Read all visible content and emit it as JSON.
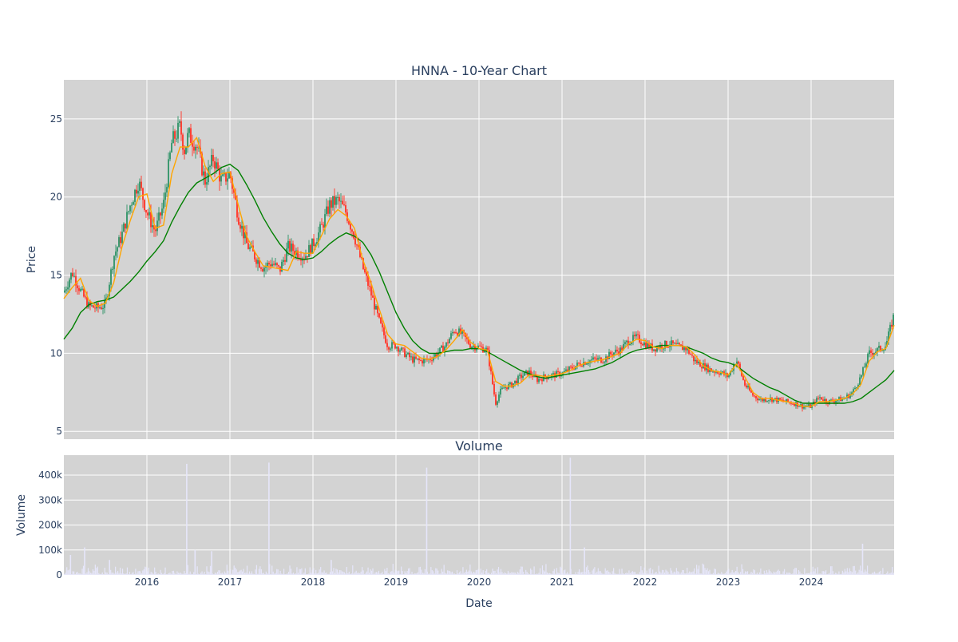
{
  "chart_data": [
    {
      "type": "line",
      "title": "HNNA - 10-Year Chart",
      "xlabel": "",
      "ylabel": "Price",
      "ylim": [
        4.5,
        27.5
      ],
      "y_ticks": [
        5,
        10,
        15,
        20,
        25
      ],
      "x_ticks": [
        "2016",
        "2017",
        "2018",
        "2019",
        "2020",
        "2021",
        "2022",
        "2023",
        "2024"
      ],
      "xlim": [
        2015.0,
        2025.0
      ],
      "grid": true,
      "legend": "none",
      "colors": {
        "up": "#3d9970",
        "down": "#ff4136",
        "ma_short": "#ffa500",
        "ma_long": "#008000",
        "plot_bg": "#d3d3d3"
      },
      "series": [
        {
          "x": [
            2015.0,
            2015.1,
            2015.2,
            2015.3,
            2015.4,
            2015.5,
            2015.6,
            2015.7,
            2015.8,
            2015.9,
            2016.0,
            2016.1,
            2016.2,
            2016.3,
            2016.4,
            2016.45,
            2016.5,
            2016.6,
            2016.7,
            2016.8,
            2016.9,
            2017.0,
            2017.1,
            2017.2,
            2017.3,
            2017.4,
            2017.5,
            2017.6,
            2017.7,
            2017.8,
            2017.9,
            2018.0,
            2018.1,
            2018.2,
            2018.3,
            2018.4,
            2018.5,
            2018.6,
            2018.7,
            2018.8,
            2018.9,
            2019.0,
            2019.1,
            2019.2,
            2019.3,
            2019.4,
            2019.5,
            2019.6,
            2019.7,
            2019.8,
            2019.9,
            2020.0,
            2020.1,
            2020.2,
            2020.25,
            2020.3,
            2020.4,
            2020.5,
            2020.6,
            2020.7,
            2020.8,
            2020.9,
            2021.0,
            2021.1,
            2021.2,
            2021.3,
            2021.4,
            2021.5,
            2021.6,
            2021.7,
            2021.8,
            2021.9,
            2022.0,
            2022.1,
            2022.2,
            2022.3,
            2022.4,
            2022.5,
            2022.6,
            2022.7,
            2022.8,
            2022.9,
            2023.0,
            2023.1,
            2023.2,
            2023.3,
            2023.4,
            2023.5,
            2023.6,
            2023.7,
            2023.8,
            2023.9,
            2024.0,
            2024.1,
            2024.2,
            2024.3,
            2024.4,
            2024.5,
            2024.6,
            2024.7,
            2024.8,
            2024.9,
            2025.0
          ],
          "values": [
            13.9,
            15.2,
            14.0,
            13.0,
            12.9,
            13.1,
            16.2,
            17.6,
            19.5,
            21.0,
            19.0,
            17.8,
            19.5,
            23.5,
            24.5,
            23.0,
            24.0,
            23.3,
            21.0,
            22.5,
            21.0,
            21.5,
            18.8,
            17.0,
            16.2,
            15.5,
            15.8,
            15.3,
            16.8,
            16.5,
            16.2,
            17.0,
            18.0,
            19.5,
            19.8,
            19.0,
            17.5,
            15.5,
            13.8,
            12.0,
            10.5,
            10.5,
            10.0,
            9.6,
            9.5,
            9.6,
            10.0,
            10.5,
            11.5,
            11.2,
            10.5,
            10.4,
            10.2,
            6.8,
            7.5,
            7.8,
            8.0,
            8.5,
            8.8,
            8.3,
            8.5,
            8.6,
            8.7,
            9.0,
            9.3,
            9.5,
            9.6,
            9.6,
            10.0,
            10.2,
            10.8,
            11.0,
            10.6,
            10.3,
            10.5,
            10.6,
            10.4,
            10.3,
            9.5,
            9.2,
            8.9,
            8.8,
            8.5,
            9.6,
            8.0,
            7.3,
            7.0,
            7.1,
            7.0,
            6.9,
            6.8,
            6.6,
            6.6,
            7.2,
            6.9,
            7.0,
            7.1,
            7.5,
            8.5,
            10.0,
            10.2,
            10.5,
            12.5
          ]
        },
        {
          "name": "",
          "x": [
            2015.0,
            2015.1,
            2015.2,
            2015.3,
            2015.4,
            2015.5,
            2015.6,
            2015.7,
            2015.8,
            2015.9,
            2016.0,
            2016.1,
            2016.2,
            2016.3,
            2016.4,
            2016.5,
            2016.6,
            2016.7,
            2016.8,
            2016.9,
            2017.0,
            2017.1,
            2017.2,
            2017.3,
            2017.4,
            2017.5,
            2017.6,
            2017.7,
            2017.8,
            2017.9,
            2018.0,
            2018.1,
            2018.2,
            2018.3,
            2018.4,
            2018.5,
            2018.6,
            2018.7,
            2018.8,
            2018.9,
            2019.0,
            2019.1,
            2019.2,
            2019.3,
            2019.4,
            2019.5,
            2019.6,
            2019.7,
            2019.8,
            2019.9,
            2020.0,
            2020.1,
            2020.2,
            2020.3,
            2020.4,
            2020.5,
            2020.6,
            2020.7,
            2020.8,
            2020.9,
            2021.0,
            2021.1,
            2021.2,
            2021.3,
            2021.4,
            2021.5,
            2021.6,
            2021.7,
            2021.8,
            2021.9,
            2022.0,
            2022.1,
            2022.2,
            2022.3,
            2022.4,
            2022.5,
            2022.6,
            2022.7,
            2022.8,
            2022.9,
            2023.0,
            2023.1,
            2023.2,
            2023.3,
            2023.4,
            2023.5,
            2023.6,
            2023.7,
            2023.8,
            2023.9,
            2024.0,
            2024.1,
            2024.2,
            2024.3,
            2024.4,
            2024.5,
            2024.6,
            2024.7,
            2024.8,
            2024.9,
            2025.0
          ],
          "values": [
            13.5,
            14.2,
            14.8,
            13.4,
            13.0,
            13.2,
            14.5,
            16.8,
            18.5,
            20.0,
            20.2,
            18.0,
            18.2,
            21.5,
            23.2,
            23.2,
            23.8,
            22.0,
            21.0,
            21.5,
            21.6,
            19.5,
            17.5,
            16.5,
            15.6,
            15.5,
            15.4,
            15.3,
            16.5,
            16.4,
            16.4,
            17.5,
            18.6,
            19.2,
            18.8,
            18.0,
            16.0,
            14.5,
            12.8,
            11.2,
            10.6,
            10.5,
            10.1,
            9.7,
            9.6,
            9.8,
            10.2,
            10.8,
            11.5,
            10.7,
            10.3,
            10.2,
            8.2,
            7.9,
            7.9,
            8.1,
            8.6,
            8.6,
            8.5,
            8.6,
            8.7,
            8.9,
            9.2,
            9.4,
            9.5,
            9.6,
            9.8,
            10.0,
            10.6,
            10.9,
            10.8,
            10.4,
            10.3,
            10.5,
            10.5,
            10.4,
            9.9,
            9.2,
            8.9,
            8.8,
            8.6,
            9.3,
            8.5,
            7.5,
            7.1,
            7.1,
            7.0,
            6.9,
            6.8,
            6.6,
            6.6,
            6.9,
            6.9,
            7.0,
            7.1,
            7.4,
            8.0,
            9.5,
            10.1,
            10.3,
            11.8
          ]
        },
        {
          "name": "",
          "x": [
            2015.0,
            2015.1,
            2015.2,
            2015.3,
            2015.4,
            2015.5,
            2015.6,
            2015.7,
            2015.8,
            2015.9,
            2016.0,
            2016.1,
            2016.2,
            2016.3,
            2016.4,
            2016.5,
            2016.6,
            2016.7,
            2016.8,
            2016.9,
            2017.0,
            2017.1,
            2017.2,
            2017.3,
            2017.4,
            2017.5,
            2017.6,
            2017.7,
            2017.8,
            2017.9,
            2018.0,
            2018.1,
            2018.2,
            2018.3,
            2018.4,
            2018.5,
            2018.6,
            2018.7,
            2018.8,
            2018.9,
            2019.0,
            2019.1,
            2019.2,
            2019.3,
            2019.4,
            2019.5,
            2019.6,
            2019.7,
            2019.8,
            2019.9,
            2020.0,
            2020.1,
            2020.2,
            2020.3,
            2020.4,
            2020.5,
            2020.6,
            2020.7,
            2020.8,
            2020.9,
            2021.0,
            2021.1,
            2021.2,
            2021.3,
            2021.4,
            2021.5,
            2021.6,
            2021.7,
            2021.8,
            2021.9,
            2022.0,
            2022.1,
            2022.2,
            2022.3,
            2022.4,
            2022.5,
            2022.6,
            2022.7,
            2022.8,
            2022.9,
            2023.0,
            2023.1,
            2023.2,
            2023.3,
            2023.4,
            2023.5,
            2023.6,
            2023.7,
            2023.8,
            2023.9,
            2024.0,
            2024.1,
            2024.2,
            2024.3,
            2024.4,
            2024.5,
            2024.6,
            2024.7,
            2024.8,
            2024.9,
            2025.0
          ],
          "values": [
            10.9,
            11.6,
            12.6,
            13.1,
            13.3,
            13.4,
            13.6,
            14.1,
            14.6,
            15.2,
            15.9,
            16.5,
            17.2,
            18.4,
            19.4,
            20.3,
            20.9,
            21.2,
            21.5,
            21.9,
            22.1,
            21.7,
            20.8,
            19.8,
            18.7,
            17.8,
            17.0,
            16.4,
            16.1,
            16.0,
            16.1,
            16.5,
            17.0,
            17.4,
            17.7,
            17.5,
            17.1,
            16.3,
            15.2,
            13.9,
            12.6,
            11.6,
            10.8,
            10.3,
            10.0,
            10.0,
            10.1,
            10.2,
            10.2,
            10.3,
            10.3,
            10.1,
            9.8,
            9.5,
            9.2,
            8.9,
            8.7,
            8.5,
            8.4,
            8.5,
            8.6,
            8.7,
            8.8,
            8.9,
            9.0,
            9.2,
            9.4,
            9.7,
            10.0,
            10.2,
            10.3,
            10.4,
            10.5,
            10.5,
            10.5,
            10.4,
            10.2,
            10.0,
            9.7,
            9.5,
            9.4,
            9.2,
            8.8,
            8.4,
            8.1,
            7.8,
            7.6,
            7.3,
            7.0,
            6.8,
            6.8,
            6.8,
            6.8,
            6.8,
            6.8,
            6.9,
            7.1,
            7.5,
            7.9,
            8.3,
            8.9
          ]
        }
      ]
    },
    {
      "type": "bar",
      "title": "Volume",
      "xlabel": "Date",
      "ylabel": "Volume",
      "ylim": [
        0,
        480000
      ],
      "y_ticks": [
        0,
        100000,
        200000,
        300000,
        400000
      ],
      "y_tick_labels": [
        "0",
        "100k",
        "200k",
        "300k",
        "400k"
      ],
      "x_ticks": [
        "2016",
        "2017",
        "2018",
        "2019",
        "2020",
        "2021",
        "2022",
        "2023",
        "2024"
      ],
      "xlim": [
        2015.0,
        2025.0
      ],
      "grid": true,
      "colors": {
        "bar": "#e6e6fa",
        "plot_bg": "#d3d3d3"
      },
      "spikes": {
        "x": [
          2015.25,
          2016.48,
          2016.58,
          2016.78,
          2017.47,
          2018.22,
          2019.37,
          2021.1,
          2021.27,
          2024.62,
          2015.08,
          2015.55
        ],
        "values": [
          110000,
          445000,
          100000,
          95000,
          450000,
          60000,
          430000,
          470000,
          110000,
          125000,
          80000,
          60000
        ]
      }
    }
  ]
}
